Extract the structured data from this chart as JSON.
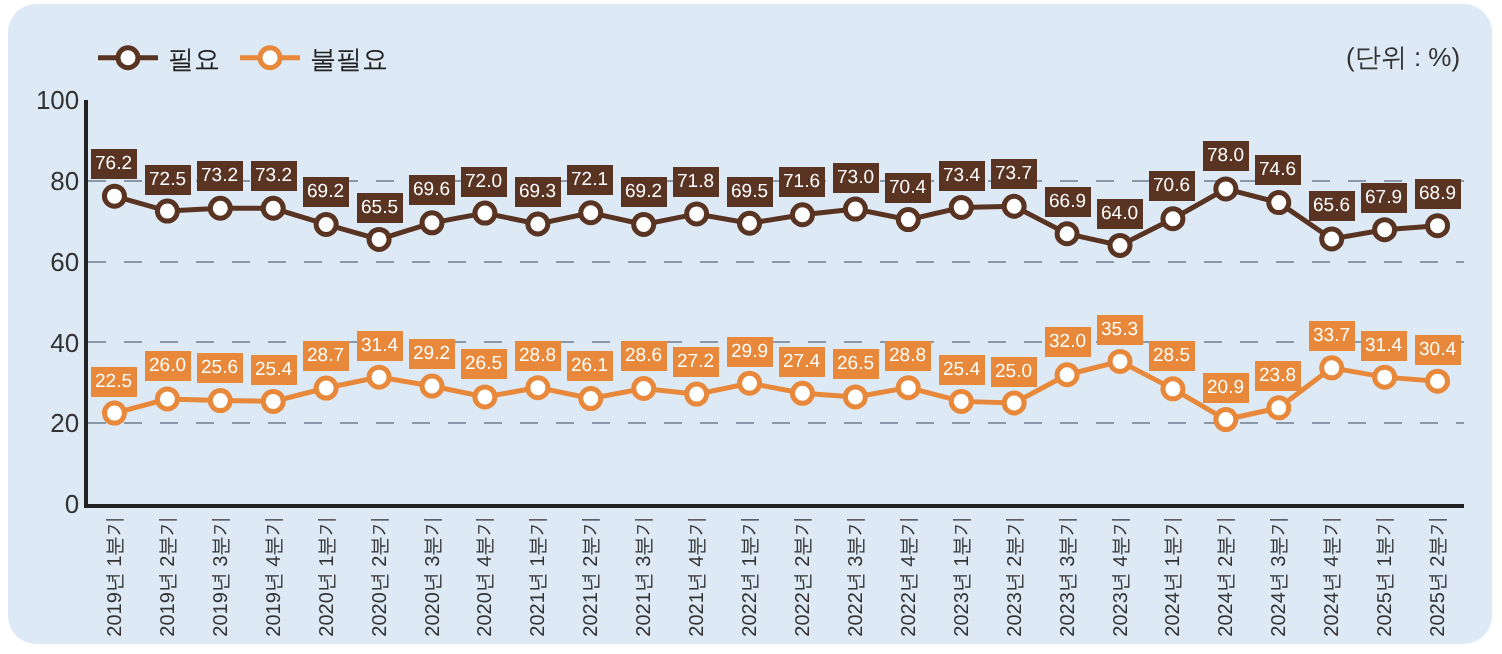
{
  "chart_data": {
    "type": "line",
    "categories": [
      "2019년 1분기",
      "2019년 2분기",
      "2019년 3분기",
      "2019년 4분기",
      "2020년 1분기",
      "2020년 2분기",
      "2020년 3분기",
      "2020년 4분기",
      "2021년 1분기",
      "2021년 2분기",
      "2021년 3분기",
      "2021년 4분기",
      "2022년 1분기",
      "2022년 2분기",
      "2022년 3분기",
      "2022년 4분기",
      "2023년 1분기",
      "2023년 2분기",
      "2023년 3분기",
      "2023년 4분기",
      "2024년 1분기",
      "2024년 2분기",
      "2024년 3분기",
      "2024년 4분기",
      "2025년 1분기",
      "2025년 2분기"
    ],
    "series": [
      {
        "name": "필요",
        "color": "#5a3422",
        "values": [
          76.2,
          72.5,
          73.2,
          73.2,
          69.2,
          65.5,
          69.6,
          72.0,
          69.3,
          72.1,
          69.2,
          71.8,
          69.5,
          71.6,
          73.0,
          70.4,
          73.4,
          73.7,
          66.9,
          64.0,
          70.6,
          78.0,
          74.6,
          65.6,
          67.9,
          68.9
        ],
        "value_labels": [
          "76.2",
          "72.5",
          "73.2",
          "73.2",
          "69.2",
          "65.5",
          "69.6",
          "72.0",
          "69.3",
          "72.1",
          "69.2",
          "71.8",
          "69.5",
          "71.6",
          "73.0",
          "70.4",
          "73.4",
          "73.7",
          "66.9",
          "64.0",
          "70.6",
          "78.0",
          "74.6",
          "65.6",
          "67.9",
          "68.9"
        ]
      },
      {
        "name": "불필요",
        "color": "#e8883a",
        "values": [
          22.5,
          26.0,
          25.6,
          25.4,
          28.7,
          31.4,
          29.2,
          26.5,
          28.8,
          26.1,
          28.6,
          27.2,
          29.9,
          27.4,
          26.5,
          28.8,
          25.4,
          25.0,
          32.0,
          35.3,
          28.5,
          20.9,
          23.8,
          33.7,
          31.4,
          30.4
        ],
        "value_labels": [
          "22.5",
          "26.0",
          "25.6",
          "25.4",
          "28.7",
          "31.4",
          "29.2",
          "26.5",
          "28.8",
          "26.1",
          "28.6",
          "27.2",
          "29.9",
          "27.4",
          "26.5",
          "28.8",
          "25.4",
          "25.0",
          "32.0",
          "35.3",
          "28.5",
          "20.9",
          "23.8",
          "33.7",
          "31.4",
          "30.4"
        ]
      }
    ],
    "ylim": [
      0,
      100
    ],
    "yticks": [
      0,
      20,
      40,
      60,
      80,
      100
    ],
    "grid": "y",
    "legend": "top left",
    "marker": "circle",
    "line_style": "solid",
    "annotations": [
      "(단위 : %)"
    ]
  }
}
